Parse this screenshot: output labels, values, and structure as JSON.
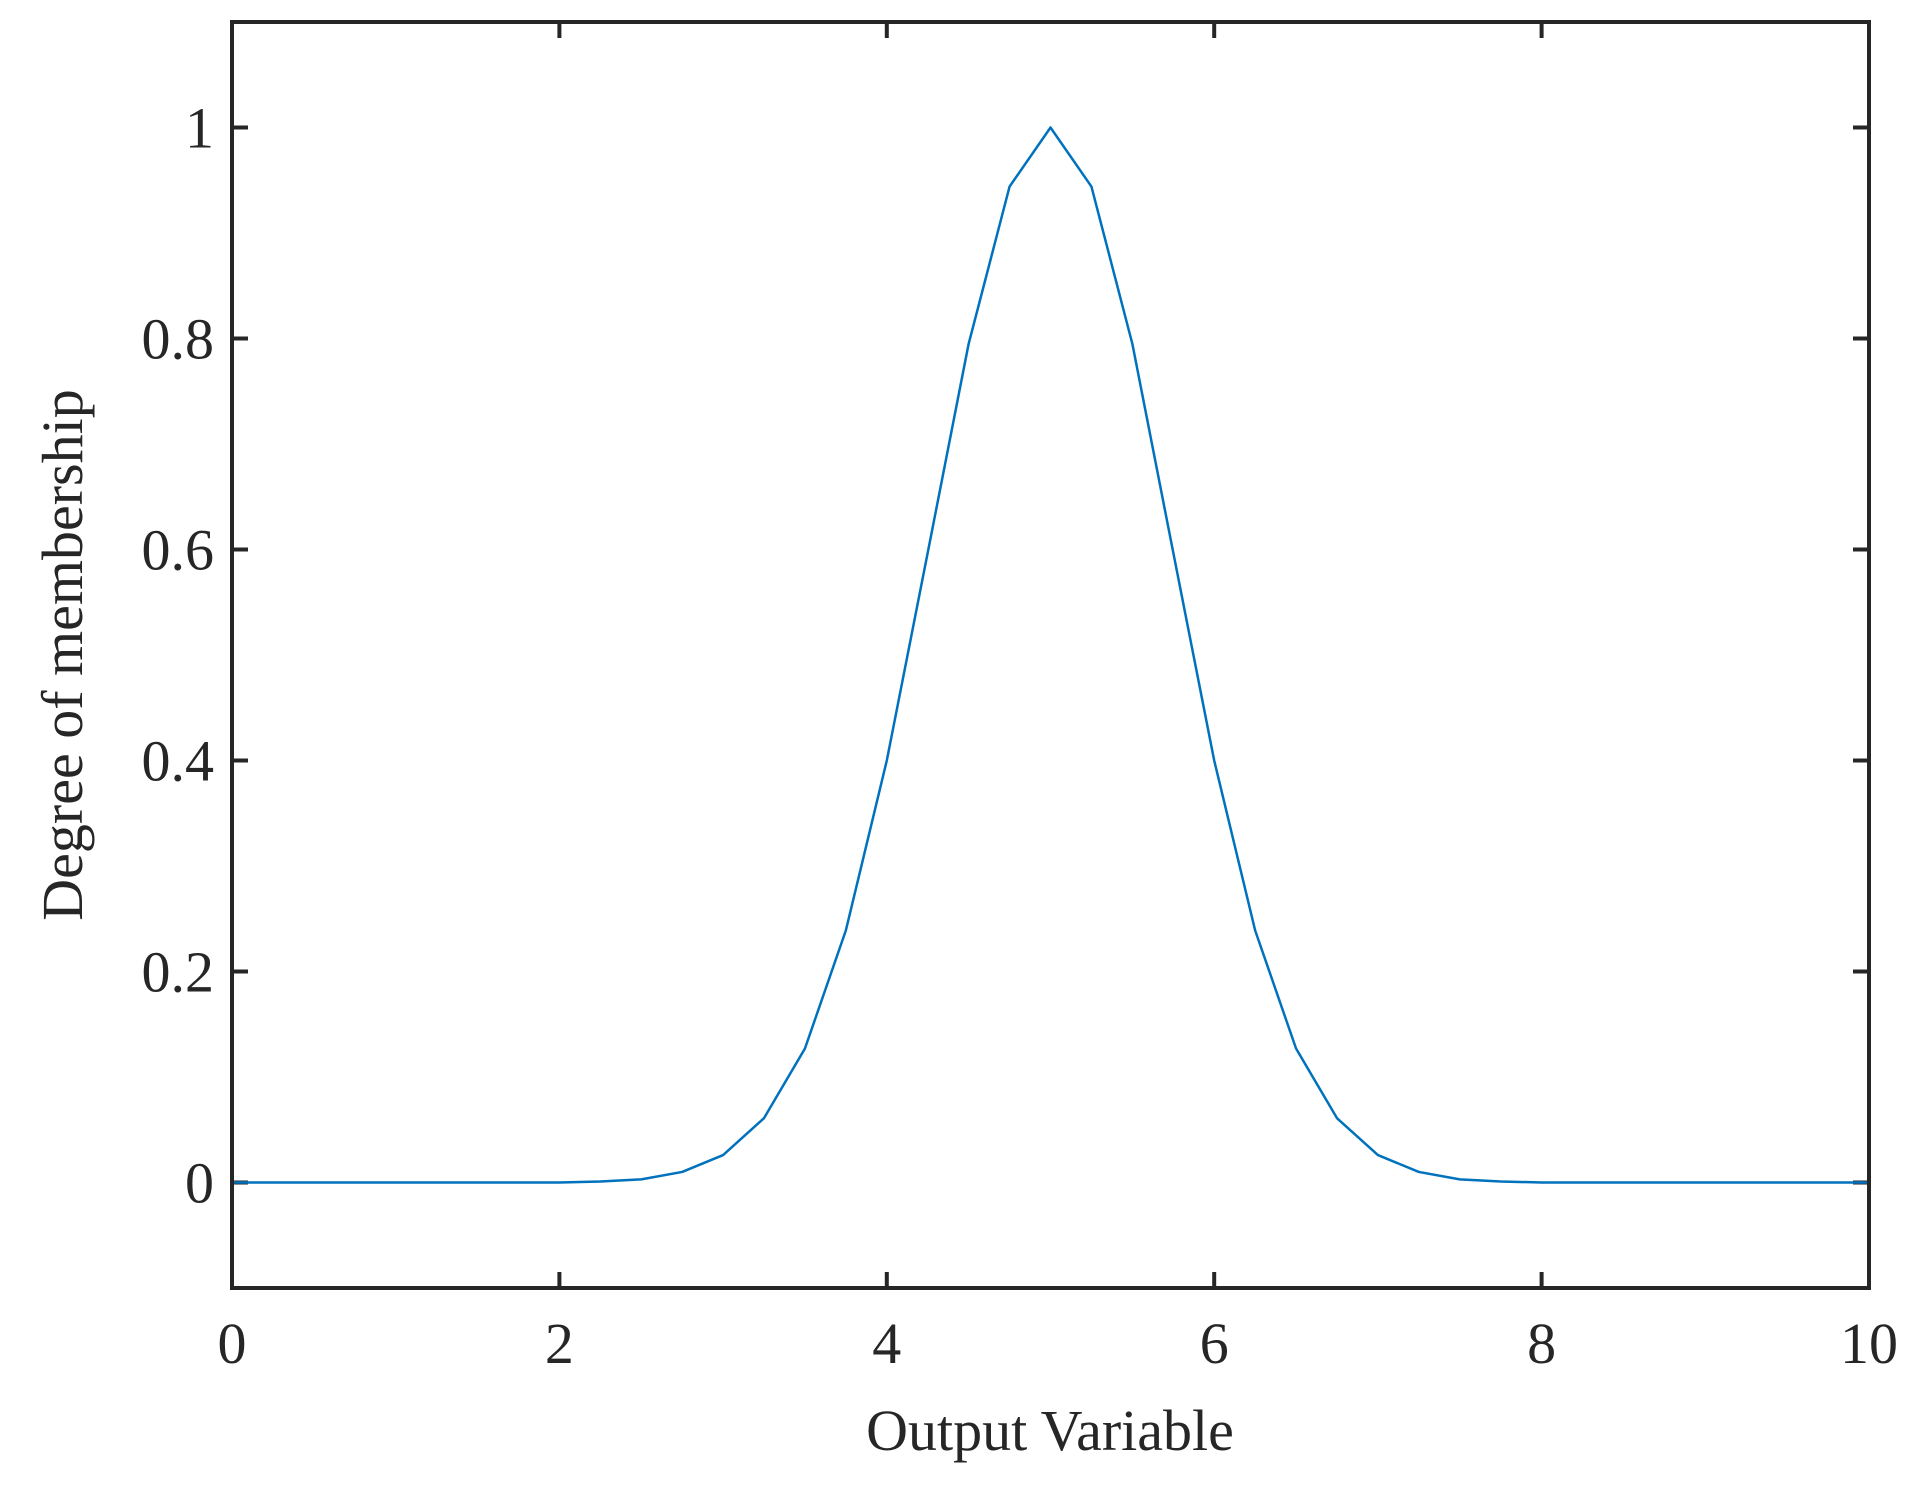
{
  "chart_data": {
    "type": "line",
    "xlabel": "Output Variable",
    "ylabel": "Degree of membership",
    "x": [
      0,
      0.25,
      0.5,
      0.75,
      1,
      1.25,
      1.5,
      1.75,
      2,
      2.25,
      2.5,
      2.75,
      3,
      3.25,
      3.5,
      3.75,
      4,
      4.25,
      4.5,
      4.75,
      5,
      5.25,
      5.5,
      5.75,
      6,
      6.25,
      6.5,
      6.75,
      7,
      7.25,
      7.5,
      7.75,
      8,
      8.25,
      8.5,
      8.75,
      9,
      9.25,
      9.5,
      9.75,
      10
    ],
    "series": [
      {
        "color": "#0072bd",
        "values": [
          0,
          0,
          0,
          0,
          0,
          0,
          0,
          0,
          0,
          0.001,
          0.003,
          0.01,
          0.026,
          0.061,
          0.127,
          0.239,
          0.4,
          0.597,
          0.795,
          0.944,
          1,
          0.944,
          0.795,
          0.597,
          0.4,
          0.239,
          0.127,
          0.061,
          0.026,
          0.01,
          0.003,
          0.001,
          0,
          0,
          0,
          0,
          0,
          0,
          0,
          0,
          0
        ]
      }
    ],
    "xlim": [
      0,
      10
    ],
    "xticks": [
      0,
      2,
      4,
      6,
      8,
      10
    ],
    "ylim": [
      -0.1,
      1.1
    ],
    "yticks": [
      0,
      0.2,
      0.4,
      0.6,
      0.8,
      1
    ],
    "grid": false
  }
}
